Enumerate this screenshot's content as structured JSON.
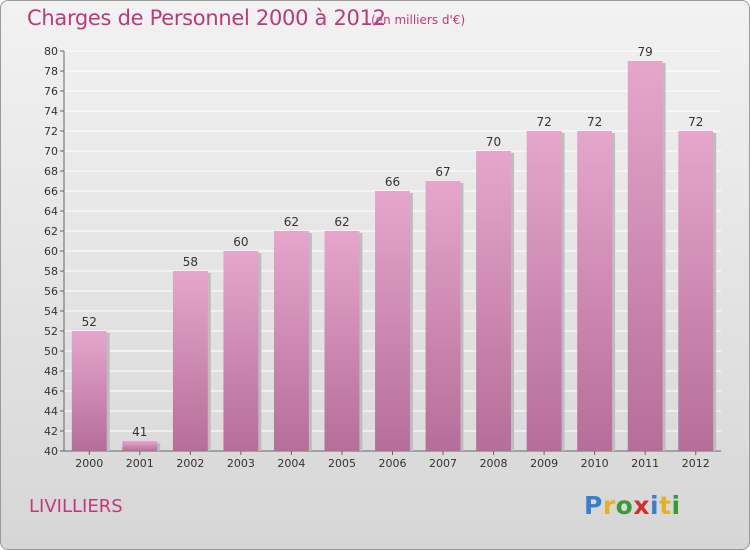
{
  "header": {
    "title": "Charges de Personnel 2000 à 2012",
    "subtitle": "(en milliers d'€)"
  },
  "footer": {
    "commune": "LIVILLIERS",
    "logo_letters": [
      "P",
      "r",
      "o",
      "x",
      "i",
      "t",
      "i"
    ],
    "logo_colors": [
      "#3a7fcf",
      "#e8b020",
      "#3a9a3a",
      "#d03030",
      "#3a7fcf",
      "#e8b020",
      "#3a9a3a"
    ]
  },
  "chart_data": {
    "type": "bar",
    "title": "Charges de Personnel 2000 à 2012",
    "subtitle": "(en milliers d'€)",
    "categories": [
      "2000",
      "2001",
      "2002",
      "2003",
      "2004",
      "2005",
      "2006",
      "2007",
      "2008",
      "2009",
      "2010",
      "2011",
      "2012"
    ],
    "values": [
      52,
      41,
      58,
      60,
      62,
      62,
      66,
      67,
      70,
      72,
      72,
      79,
      72
    ],
    "ylim": [
      40,
      80
    ],
    "yticks": [
      40,
      42,
      44,
      46,
      48,
      50,
      52,
      54,
      56,
      58,
      60,
      62,
      64,
      66,
      68,
      70,
      72,
      74,
      76,
      78,
      80
    ],
    "grid": true,
    "bar_color_top": "#e6a6cc",
    "bar_color_bottom": "#b56e99"
  }
}
